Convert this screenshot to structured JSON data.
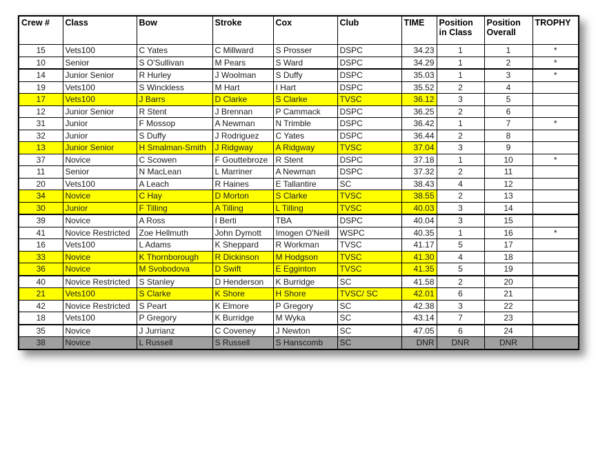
{
  "colors": {
    "highlight_yellow": "#FFFF00",
    "dnr_gray": "#A0A0A0",
    "border_black": "#000000",
    "page_background": "#FFFFFF"
  },
  "table": {
    "columns": [
      {
        "key": "crew",
        "label": "Crew #"
      },
      {
        "key": "class",
        "label": "Class"
      },
      {
        "key": "bow",
        "label": "Bow"
      },
      {
        "key": "stroke",
        "label": "Stroke"
      },
      {
        "key": "cox",
        "label": "Cox"
      },
      {
        "key": "club",
        "label": "Club"
      },
      {
        "key": "time",
        "label": "TIME"
      },
      {
        "key": "pos_class",
        "label": "Position in Class"
      },
      {
        "key": "pos_overall",
        "label": "Position Overall"
      },
      {
        "key": "trophy",
        "label": "TROPHY"
      }
    ],
    "rows": [
      {
        "crew": "15",
        "class": "Vets100",
        "bow": "C Yates",
        "stroke": "C Millward",
        "cox": "S Prosser",
        "club": "DSPC",
        "time": "34.23",
        "pos_class": "1",
        "pos_overall": "1",
        "trophy": "*",
        "highlight": "none"
      },
      {
        "crew": "10",
        "class": "Senior",
        "bow": "S O'Sullivan",
        "stroke": "M Pears",
        "cox": "S Ward",
        "club": "DSPC",
        "time": "34.29",
        "pos_class": "1",
        "pos_overall": "2",
        "trophy": "*",
        "highlight": "none"
      },
      {
        "crew": "14",
        "class": "Junior Senior",
        "bow": "R Hurley",
        "stroke": "J Woolman",
        "cox": "S Duffy",
        "club": "DSPC",
        "time": "35.03",
        "pos_class": "1",
        "pos_overall": "3",
        "trophy": "*",
        "highlight": "none"
      },
      {
        "crew": "19",
        "class": "Vets100",
        "bow": "S Winckless",
        "stroke": "M Hart",
        "cox": "I Hart",
        "club": "DSPC",
        "time": "35.52",
        "pos_class": "2",
        "pos_overall": "4",
        "trophy": "",
        "highlight": "none"
      },
      {
        "crew": "17",
        "class": "Vets100",
        "bow": "J Barrs",
        "stroke": "D Clarke",
        "cox": "S Clarke",
        "club": "TVSC",
        "time": "36.12",
        "pos_class": "3",
        "pos_overall": "5",
        "trophy": "",
        "highlight": "yellow"
      },
      {
        "crew": "12",
        "class": "Junior Senior",
        "bow": "R Stent",
        "stroke": "J Brennan",
        "cox": "P Cammack",
        "club": "DSPC",
        "time": "36.25",
        "pos_class": "2",
        "pos_overall": "6",
        "trophy": "",
        "highlight": "none"
      },
      {
        "crew": "31",
        "class": "Junior",
        "bow": "F Mossop",
        "stroke": "A Newman",
        "cox": "N Trimble",
        "club": "DSPC",
        "time": "36.42",
        "pos_class": "1",
        "pos_overall": "7",
        "trophy": "*",
        "highlight": "none"
      },
      {
        "crew": "32",
        "class": "Junior",
        "bow": "S Duffy",
        "stroke": "J Rodriguez",
        "cox": "C Yates",
        "club": "DSPC",
        "time": "36.44",
        "pos_class": "2",
        "pos_overall": "8",
        "trophy": "",
        "highlight": "none"
      },
      {
        "crew": "13",
        "class": "Junior Senior",
        "bow": "H Smalman-Smith",
        "stroke": "J Ridgway",
        "cox": "A Ridgway",
        "club": "TVSC",
        "time": "37.04",
        "pos_class": "3",
        "pos_overall": "9",
        "trophy": "",
        "highlight": "yellow"
      },
      {
        "crew": "37",
        "class": "Novice",
        "bow": "C Scowen",
        "stroke": "F Gouttebroze",
        "cox": "R Stent",
        "club": "DSPC",
        "time": "37.18",
        "pos_class": "1",
        "pos_overall": "10",
        "trophy": "*",
        "highlight": "none"
      },
      {
        "crew": "11",
        "class": "Senior",
        "bow": "N MacLean",
        "stroke": "L Marriner",
        "cox": "A Newman",
        "club": "DSPC",
        "time": "37.32",
        "pos_class": "2",
        "pos_overall": "11",
        "trophy": "",
        "highlight": "none"
      },
      {
        "crew": "20",
        "class": "Vets100",
        "bow": "A Leach",
        "stroke": "R Haines",
        "cox": "E Tallantire",
        "club": "SC",
        "time": "38.43",
        "pos_class": "4",
        "pos_overall": "12",
        "trophy": "",
        "highlight": "none"
      },
      {
        "crew": "34",
        "class": "Novice",
        "bow": "C Hay",
        "stroke": "D Morton",
        "cox": "S Clarke",
        "club": "TVSC",
        "time": "38.55",
        "pos_class": "2",
        "pos_overall": "13",
        "trophy": "",
        "highlight": "yellow"
      },
      {
        "crew": "30",
        "class": "Junior",
        "bow": "F Tilling",
        "stroke": "A Tilling",
        "cox": "L Tilling",
        "club": "TVSC",
        "time": "40.03",
        "pos_class": "3",
        "pos_overall": "14",
        "trophy": "",
        "highlight": "yellow"
      },
      {
        "crew": "39",
        "class": "Novice",
        "bow": "A Ross",
        "stroke": "I Berti",
        "cox": "TBA",
        "club": "DSPC",
        "time": "40.04",
        "pos_class": "3",
        "pos_overall": "15",
        "trophy": "",
        "highlight": "none"
      },
      {
        "crew": "41",
        "class": "Novice Restricted",
        "bow": "Zoe Hellmuth",
        "stroke": "John Dymott",
        "cox": "Imogen O'Neill",
        "club": "WSPC",
        "time": "40.35",
        "pos_class": "1",
        "pos_overall": "16",
        "trophy": "*",
        "highlight": "none"
      },
      {
        "crew": "16",
        "class": "Vets100",
        "bow": "L Adams",
        "stroke": "K Sheppard",
        "cox": "R Workman",
        "club": "TVSC",
        "time": "41.17",
        "pos_class": "5",
        "pos_overall": "17",
        "trophy": "",
        "highlight": "none"
      },
      {
        "crew": "33",
        "class": "Novice",
        "bow": "K Thornborough",
        "stroke": "R Dickinson",
        "cox": "M Hodgson",
        "club": "TVSC",
        "time": "41.30",
        "pos_class": "4",
        "pos_overall": "18",
        "trophy": "",
        "highlight": "yellow"
      },
      {
        "crew": "36",
        "class": "Novice",
        "bow": "M Svobodova",
        "stroke": "D Swift",
        "cox": "E Egginton",
        "club": "TVSC",
        "time": "41.35",
        "pos_class": "5",
        "pos_overall": "19",
        "trophy": "",
        "highlight": "yellow"
      },
      {
        "crew": "40",
        "class": "Novice Restricted",
        "bow": "S Stanley",
        "stroke": "D Henderson",
        "cox": "K Burridge",
        "club": "SC",
        "time": "41.58",
        "pos_class": "2",
        "pos_overall": "20",
        "trophy": "",
        "highlight": "none"
      },
      {
        "crew": "21",
        "class": "Vets100",
        "bow": "S Clarke",
        "stroke": "K Shore",
        "cox": "H Shore",
        "club": "TVSC/ SC",
        "time": "42.01",
        "pos_class": "6",
        "pos_overall": "21",
        "trophy": "",
        "highlight": "yellow"
      },
      {
        "crew": "42",
        "class": "Novice Restricted",
        "bow": "S Peart",
        "stroke": "K Elmore",
        "cox": "P Gregory",
        "club": "SC",
        "time": "42.38",
        "pos_class": "3",
        "pos_overall": "22",
        "trophy": "",
        "highlight": "none"
      },
      {
        "crew": "18",
        "class": "Vets100",
        "bow": "P Gregory",
        "stroke": "K Burridge",
        "cox": "M Wyka",
        "club": "SC",
        "time": "43.14",
        "pos_class": "7",
        "pos_overall": "23",
        "trophy": "",
        "highlight": "none"
      },
      {
        "crew": "35",
        "class": "Novice",
        "bow": "J Jurrianz",
        "stroke": "C Coveney",
        "cox": "J Newton",
        "club": "SC",
        "time": "47.05",
        "pos_class": "6",
        "pos_overall": "24",
        "trophy": "",
        "highlight": "none"
      },
      {
        "crew": "38",
        "class": "Novice",
        "bow": "L Russell",
        "stroke": "S Russell",
        "cox": "S Hanscomb",
        "club": "SC",
        "time": "DNR",
        "pos_class": "DNR",
        "pos_overall": "DNR",
        "trophy": "",
        "highlight": "gray"
      }
    ]
  }
}
